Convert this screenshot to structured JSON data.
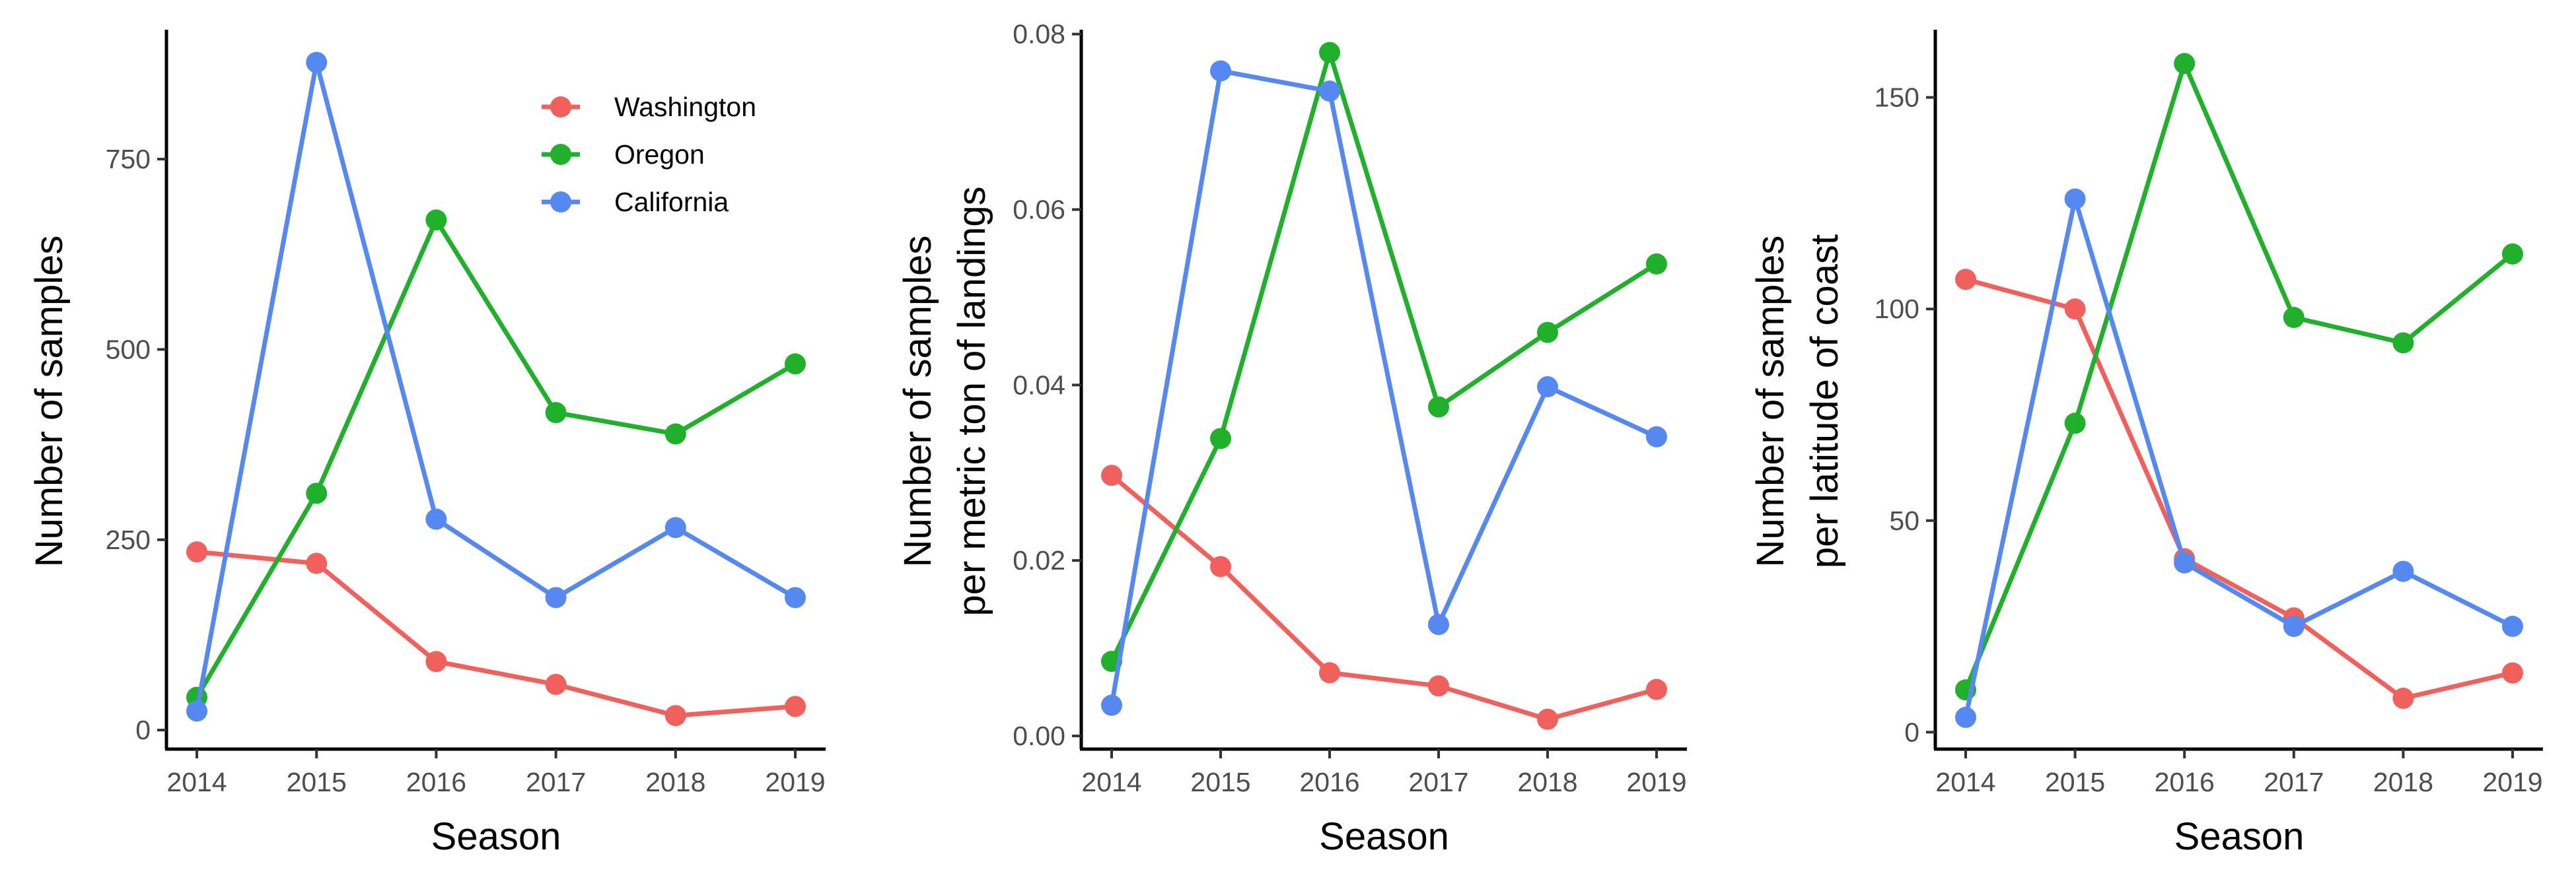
{
  "colors": {
    "Washington": "#F0605D",
    "Oregon": "#21B02B",
    "California": "#5588F0",
    "axis": "#000000",
    "tick_label": "#4d4d4d"
  },
  "legend": {
    "placement": "top-right",
    "panel": 0,
    "items": [
      "Washington",
      "Oregon",
      "California"
    ]
  },
  "chart_data": [
    {
      "type": "line",
      "xlabel": "Season",
      "ylabel": [
        "Number of samples"
      ],
      "x": [
        "2014",
        "2015",
        "2016",
        "2017",
        "2018",
        "2019"
      ],
      "ylim": [
        -25,
        920
      ],
      "yticks": [
        0,
        250,
        500,
        750
      ],
      "ytick_labels": [
        "0",
        "250",
        "500",
        "750"
      ],
      "grid": false,
      "series": [
        {
          "name": "Washington",
          "values": [
            234,
            219,
            90,
            60,
            19,
            31
          ]
        },
        {
          "name": "Oregon",
          "values": [
            43,
            311,
            670,
            417,
            389,
            481
          ]
        },
        {
          "name": "California",
          "values": [
            25,
            877,
            277,
            174,
            266,
            174
          ]
        }
      ]
    },
    {
      "type": "line",
      "xlabel": "Season",
      "ylabel": [
        "Number of samples",
        "per metric ton of landings"
      ],
      "x": [
        "2014",
        "2015",
        "2016",
        "2017",
        "2018",
        "2019"
      ],
      "ylim": [
        -0.0015,
        0.0805
      ],
      "yticks": [
        0,
        0.02,
        0.04,
        0.06,
        0.08
      ],
      "ytick_labels": [
        "0.00",
        "0.02",
        "0.04",
        "0.06",
        "0.08"
      ],
      "grid": false,
      "series": [
        {
          "name": "Washington",
          "values": [
            0.0297,
            0.0193,
            0.0072,
            0.0057,
            0.0019,
            0.0053
          ]
        },
        {
          "name": "Oregon",
          "values": [
            0.0085,
            0.0339,
            0.0779,
            0.0375,
            0.046,
            0.0538
          ]
        },
        {
          "name": "California",
          "values": [
            0.0035,
            0.0758,
            0.0735,
            0.0127,
            0.0398,
            0.0341
          ]
        }
      ]
    },
    {
      "type": "line",
      "xlabel": "Season",
      "ylabel": [
        "Number of samples",
        "per latitude of coast"
      ],
      "x": [
        "2014",
        "2015",
        "2016",
        "2017",
        "2018",
        "2019"
      ],
      "ylim": [
        -4,
        166
      ],
      "yticks": [
        0,
        50,
        100,
        150
      ],
      "ytick_labels": [
        "0",
        "50",
        "100",
        "150"
      ],
      "grid": false,
      "series": [
        {
          "name": "Washington",
          "values": [
            107,
            100,
            41,
            27,
            8,
            14
          ]
        },
        {
          "name": "Oregon",
          "values": [
            10,
            73,
            158,
            98,
            92,
            113
          ]
        },
        {
          "name": "California",
          "values": [
            3.5,
            126,
            40,
            25,
            38,
            25
          ]
        }
      ]
    }
  ]
}
